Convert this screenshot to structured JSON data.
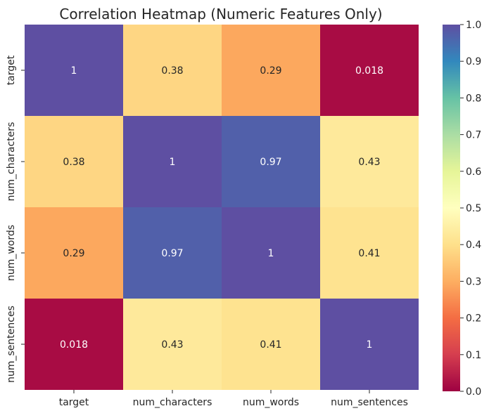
{
  "chart_data": {
    "type": "heatmap",
    "title": "Correlation Heatmap (Numeric Features Only)",
    "rows": [
      "target",
      "num_characters",
      "num_words",
      "num_sentences"
    ],
    "columns": [
      "target",
      "num_characters",
      "num_words",
      "num_sentences"
    ],
    "values": [
      [
        1,
        0.38,
        0.29,
        0.018
      ],
      [
        0.38,
        1,
        0.97,
        0.43
      ],
      [
        0.29,
        0.97,
        1,
        0.41
      ],
      [
        0.018,
        0.43,
        0.41,
        1
      ]
    ],
    "cell_labels": [
      [
        "1",
        "0.38",
        "0.29",
        "0.018"
      ],
      [
        "0.38",
        "1",
        "0.97",
        "0.43"
      ],
      [
        "0.29",
        "0.97",
        "1",
        "0.41"
      ],
      [
        "0.018",
        "0.43",
        "0.41",
        "1"
      ]
    ],
    "colormap": "Spectral",
    "colorbar": {
      "vmin": 0.0,
      "vmax": 1.0,
      "ticks": [
        "0.0",
        "0.1",
        "0.2",
        "0.3",
        "0.4",
        "0.5",
        "0.6",
        "0.7",
        "0.8",
        "0.9",
        "1.0"
      ]
    },
    "annotations": true,
    "grid": false
  }
}
